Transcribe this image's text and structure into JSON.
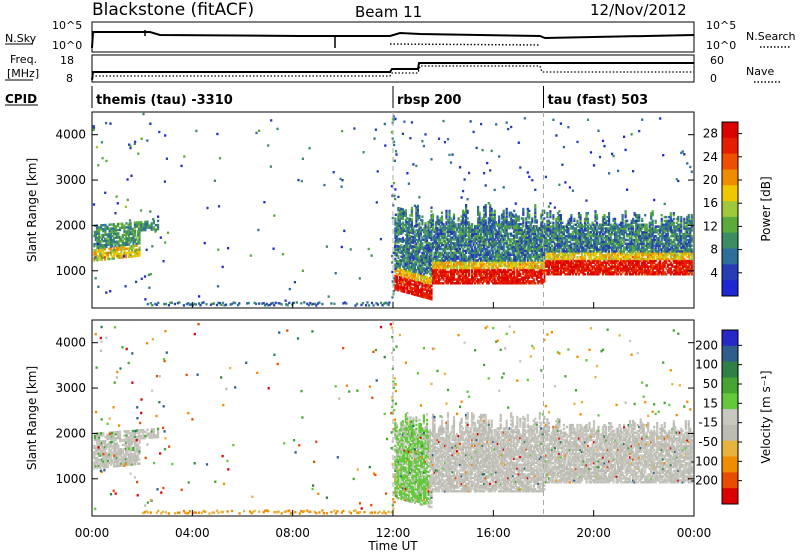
{
  "header": {
    "station": "Blackstone (fitACF)",
    "beam": "Beam 11",
    "date": "12/Nov/2012"
  },
  "top_panels": {
    "nsky_label": "N.Sky",
    "nsearch_label": "N.Search",
    "freq_label_1": "Freq.",
    "freq_label_2": "[MHz]",
    "nave_label": "Nave",
    "cpid_label": "CPID",
    "nsky_ticks": [
      "10^5",
      "10^0"
    ],
    "nsky_right_ticks": [
      "10^5",
      "10^0"
    ],
    "freq_ticks": [
      "18",
      "8"
    ],
    "nave_ticks": [
      "60",
      "0"
    ]
  },
  "cpid_segments": [
    {
      "label": "themis (tau) -3310",
      "start_hour": 0
    },
    {
      "label": "rbsp 200",
      "start_hour": 12
    },
    {
      "label": "tau (fast) 503",
      "start_hour": 18
    }
  ],
  "x_axis": {
    "label": "Time UT",
    "ticks": [
      "00:00",
      "04:00",
      "08:00",
      "12:00",
      "16:00",
      "20:00",
      "00:00"
    ]
  },
  "colors": {
    "power": [
      "#1e28d2",
      "#283cb4",
      "#2e6e9a",
      "#3c8c64",
      "#5aaa3c",
      "#a0c83c",
      "#f0c800",
      "#f08c00",
      "#ef5000",
      "#e61e00",
      "#dc0000"
    ],
    "velocity": [
      "#2828c8",
      "#2f5e8c",
      "#2e8046",
      "#46a532",
      "#64c83c",
      "#c8c8c0",
      "#bcbcb4",
      "#e6b43c",
      "#f08c00",
      "#e84c00",
      "#dc0000"
    ]
  },
  "chart_data": [
    {
      "type": "heatmap",
      "name": "power-panel",
      "ylabel": "Slant Range [km]",
      "xlabel": "",
      "xlim": [
        0,
        24
      ],
      "ylim": [
        180,
        4500
      ],
      "yticks": [
        "1000",
        "2000",
        "3000",
        "4000"
      ],
      "colorbar": {
        "label": "Power [dB]",
        "ticks": [
          "4",
          "8",
          "12",
          "16",
          "20",
          "24",
          "28"
        ],
        "range": [
          0,
          30
        ]
      }
    },
    {
      "type": "heatmap",
      "name": "velocity-panel",
      "ylabel": "Slant Range [km]",
      "xlabel": "Time UT",
      "xlim": [
        0,
        24
      ],
      "ylim": [
        180,
        4500
      ],
      "yticks": [
        "1000",
        "2000",
        "3000",
        "4000"
      ],
      "colorbar": {
        "label": "Velocity [m s⁻¹]",
        "ticks": [
          "200",
          "100",
          "50",
          "15",
          "-15",
          "-50",
          "-100",
          "-200"
        ],
        "range": [
          -250,
          250
        ]
      }
    }
  ]
}
